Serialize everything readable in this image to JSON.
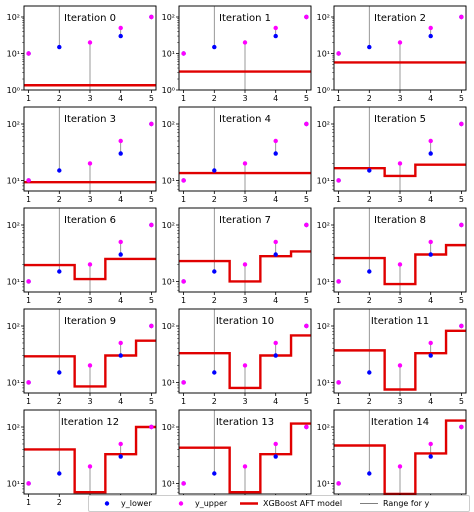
{
  "chart_data": {
    "type": "scatter",
    "y_scale": "log",
    "x_ticks": [
      1,
      2,
      3,
      4,
      5
    ],
    "y_ticks": [
      1,
      10,
      100
    ],
    "y_tick_labels": [
      "10⁰",
      "10¹",
      "10²"
    ],
    "y_lower": [
      10,
      15,
      0,
      30,
      100
    ],
    "y_upper": [
      10,
      0,
      20,
      50,
      100
    ],
    "y_range_lower_bound_value": 1,
    "y_range_upper_bound_value": 1000,
    "panels": [
      {
        "title": "Iteration 0",
        "ylim": [
          1,
          200
        ],
        "step": [
          1.35,
          1.35,
          1.35,
          1.35,
          1.35
        ]
      },
      {
        "title": "Iteration 1",
        "ylim": [
          1,
          200
        ],
        "step": [
          3.2,
          3.2,
          3.2,
          3.2,
          3.2
        ]
      },
      {
        "title": "Iteration 2",
        "ylim": [
          1,
          200
        ],
        "step": [
          5.7,
          5.7,
          5.7,
          5.7,
          5.7
        ]
      },
      {
        "title": "Iteration 3",
        "ylim": [
          6.5,
          200
        ],
        "step": [
          9.3,
          9.3,
          9.3,
          9.3,
          9.3
        ]
      },
      {
        "title": "Iteration 4",
        "ylim": [
          6.5,
          200
        ],
        "step": [
          13.5,
          13.5,
          13.5,
          13.5,
          13.5
        ]
      },
      {
        "title": "Iteration 5",
        "ylim": [
          6.5,
          200
        ],
        "step": [
          16.5,
          16.5,
          12,
          19,
          19
        ]
      },
      {
        "title": "Iteration 6",
        "ylim": [
          6.5,
          200
        ],
        "step": [
          19.5,
          19.5,
          11,
          25,
          25
        ]
      },
      {
        "title": "Iteration 7",
        "ylim": [
          6.5,
          200
        ],
        "step": [
          23,
          23,
          10,
          28,
          34
        ]
      },
      {
        "title": "Iteration 8",
        "ylim": [
          6.5,
          200
        ],
        "step": [
          26,
          26,
          9,
          30,
          44
        ]
      },
      {
        "title": "Iteration 9",
        "ylim": [
          6.5,
          200
        ],
        "step": [
          29,
          29,
          8.5,
          30,
          55
        ]
      },
      {
        "title": "Iteration 10",
        "ylim": [
          6.5,
          200
        ],
        "step": [
          33,
          33,
          8,
          30,
          68
        ]
      },
      {
        "title": "Iteration 11",
        "ylim": [
          6.5,
          200
        ],
        "step": [
          37,
          37,
          7.5,
          33,
          82
        ]
      },
      {
        "title": "Iteration 12",
        "ylim": [
          6.5,
          200
        ],
        "step": [
          40,
          40,
          7,
          33,
          100
        ]
      },
      {
        "title": "Iteration 13",
        "ylim": [
          6.5,
          200
        ],
        "step": [
          43,
          43,
          7,
          33,
          115
        ]
      },
      {
        "title": "Iteration 14",
        "ylim": [
          6.5,
          200
        ],
        "step": [
          47,
          47,
          6.5,
          34,
          130
        ]
      }
    ],
    "legend": [
      "y_lower",
      "y_upper",
      "XGBoost AFT model",
      "Range for y"
    ],
    "legend_placement": "bottom",
    "colors": {
      "y_lower": "#0000ff",
      "y_upper": "#ff00ff",
      "model": "#e00000",
      "range": "#7f7f7f"
    }
  }
}
